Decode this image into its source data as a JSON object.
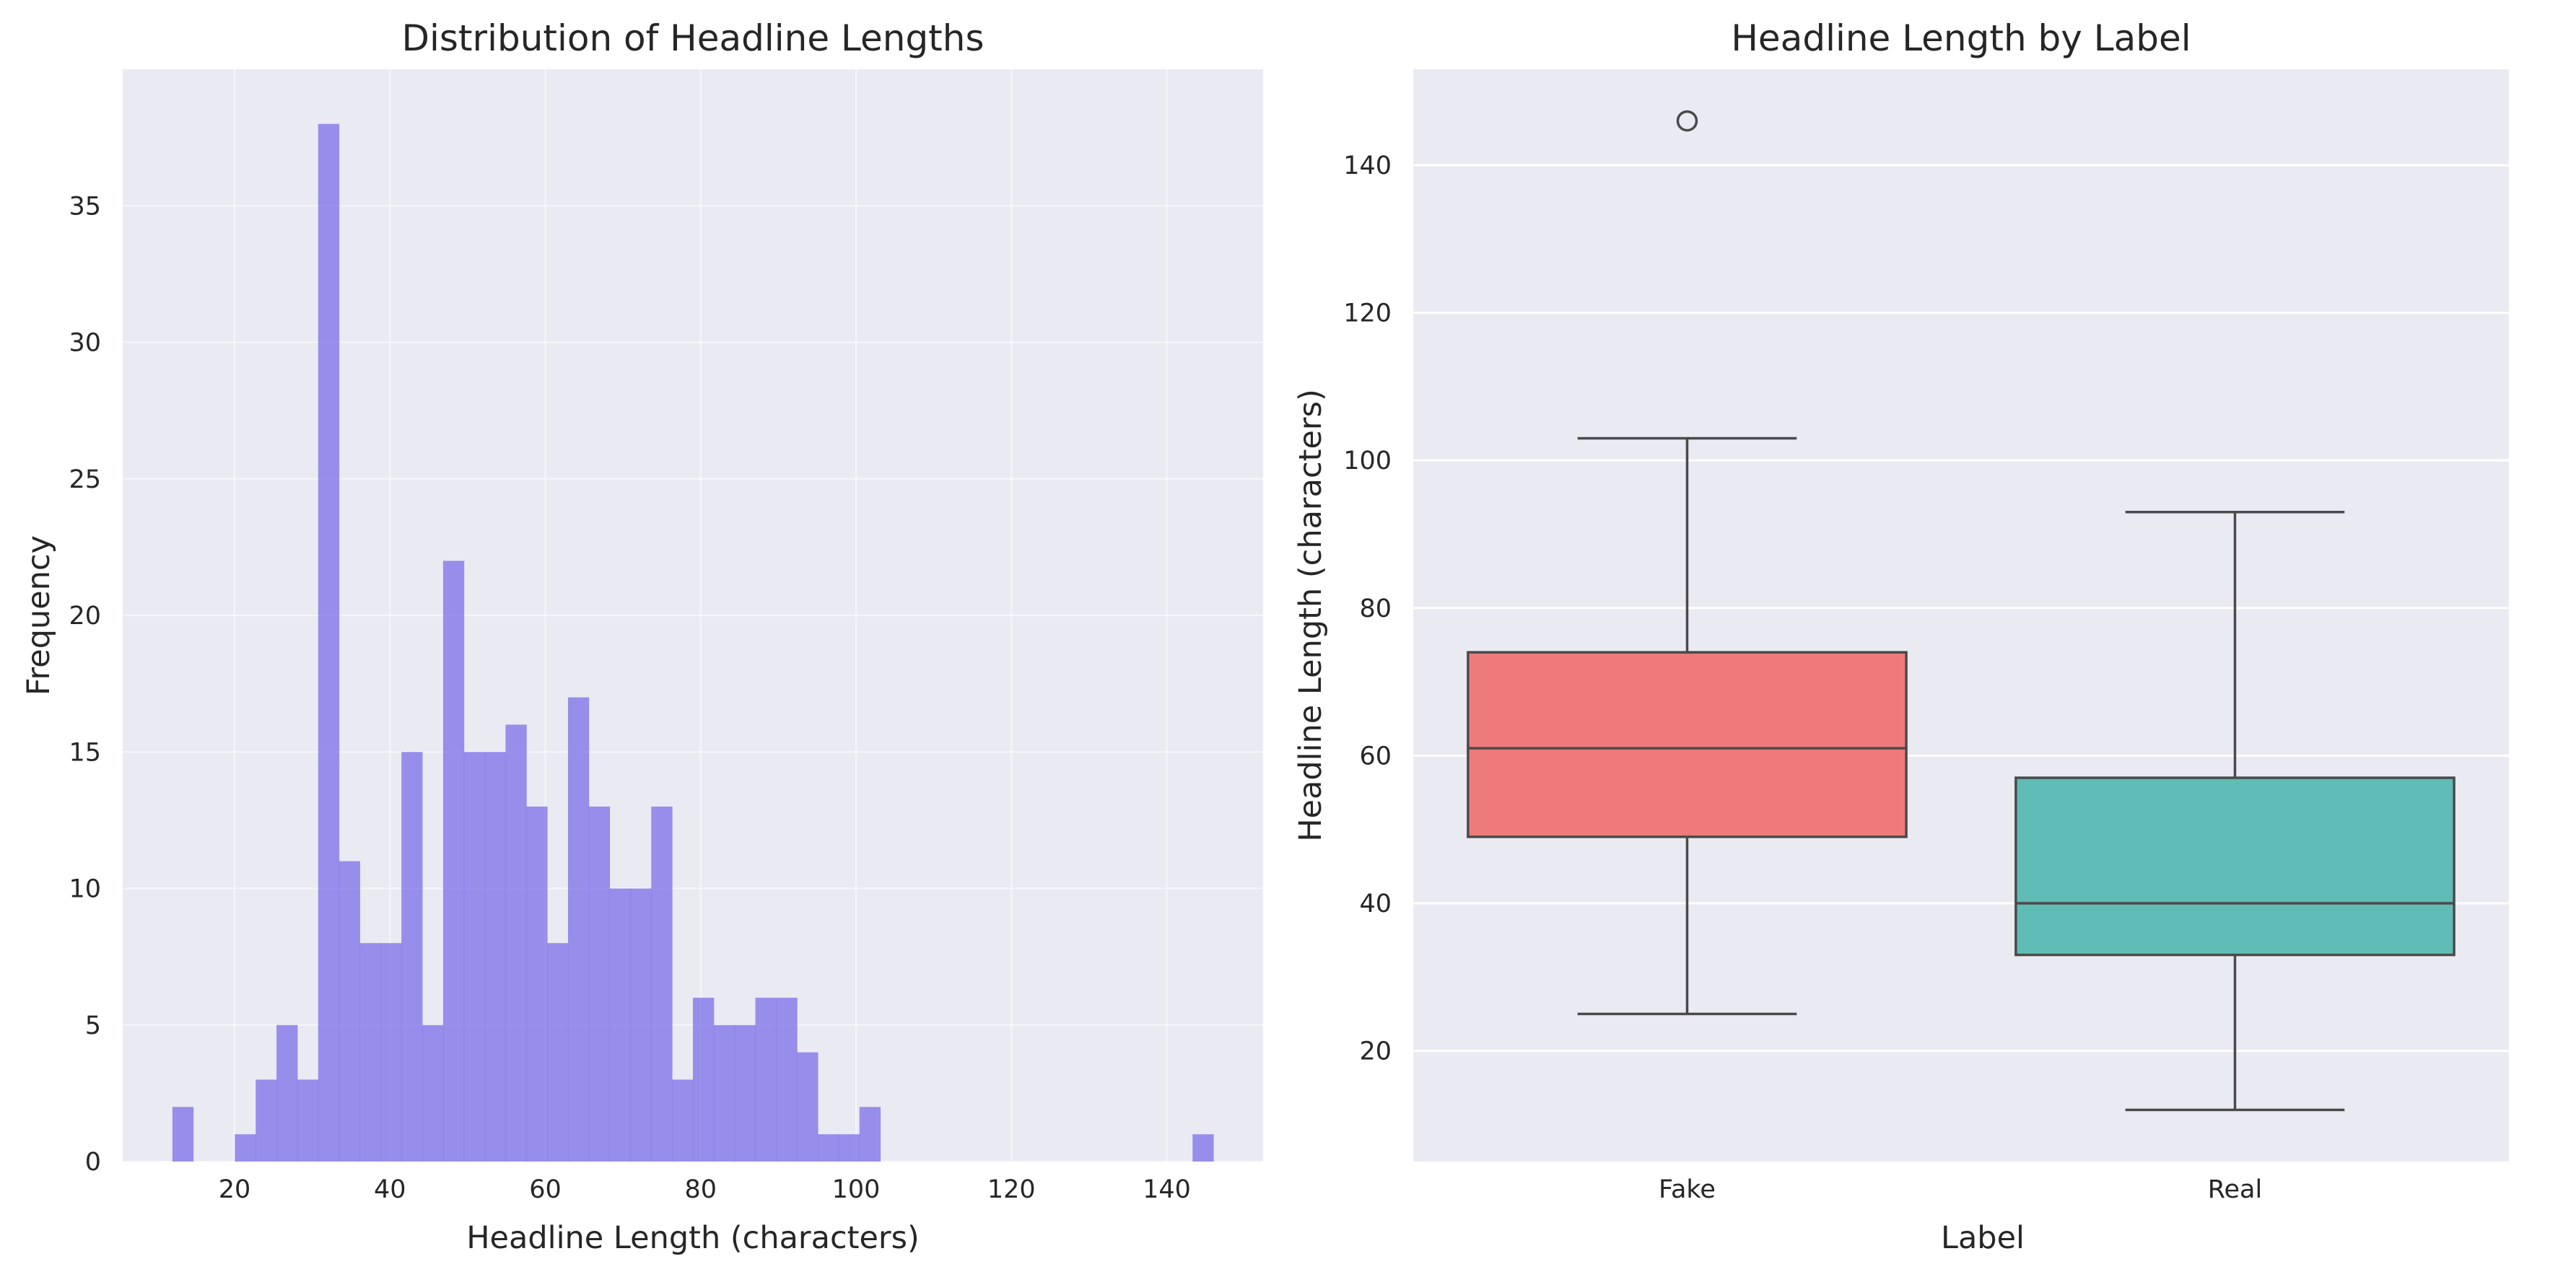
{
  "chart_data": [
    {
      "type": "bar",
      "subtype": "histogram",
      "title": "Distribution of Headline Lengths",
      "xlabel": "Headline Length (characters)",
      "ylabel": "Frequency",
      "xlim": [
        5.6,
        152.4
      ],
      "ylim": [
        0,
        40
      ],
      "xticks": [
        20,
        40,
        60,
        80,
        100,
        120,
        140
      ],
      "yticks": [
        0,
        5,
        10,
        15,
        20,
        25,
        30,
        35
      ],
      "grid": true,
      "color": "#7b6fe8",
      "bin_width": 2.68,
      "bin_start": 12.0,
      "values": [
        2,
        0,
        0,
        1,
        3,
        5,
        3,
        38,
        11,
        8,
        8,
        15,
        5,
        22,
        15,
        15,
        16,
        13,
        8,
        17,
        13,
        10,
        10,
        13,
        3,
        6,
        5,
        5,
        6,
        6,
        4,
        1,
        1,
        2,
        0,
        0,
        0,
        0,
        0,
        0,
        0,
        0,
        0,
        0,
        0,
        0,
        0,
        0,
        0,
        1
      ]
    },
    {
      "type": "box",
      "title": "Headline Length by Label",
      "xlabel": "Label",
      "ylabel": "Headline Length (characters)",
      "categories": [
        "Fake",
        "Real"
      ],
      "ylim": [
        5,
        153
      ],
      "yticks": [
        20,
        40,
        60,
        80,
        100,
        120,
        140
      ],
      "grid": true,
      "boxes": [
        {
          "name": "Fake",
          "whislo": 25,
          "q1": 49,
          "med": 61,
          "q3": 74,
          "whishi": 103,
          "fliers": [
            146
          ],
          "color": "#ee7b7b"
        },
        {
          "name": "Real",
          "whislo": 12,
          "q1": 33,
          "med": 40,
          "q3": 57,
          "whishi": 93,
          "fliers": [],
          "color": "#5fbdb5"
        }
      ]
    }
  ]
}
